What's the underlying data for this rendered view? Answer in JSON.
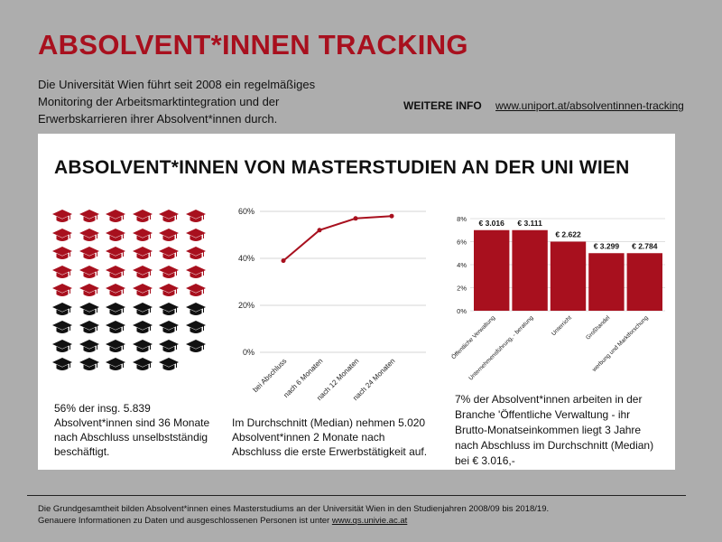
{
  "header": {
    "title": "ABSOLVENT*INNEN TRACKING",
    "intro": "Die Universität Wien führt seit 2008 ein regelmäßiges Monitoring der Arbeitsmarktintegration und der Erwerbskarrieren ihrer Absolvent*innen durch.",
    "more_label": "WEITERE INFO",
    "more_url": "www.uniport.at/absolventinnen-tracking"
  },
  "card": {
    "title": "ABSOLVENT*INNEN VON MASTERSTUDIEN AN DER UNI WIEN"
  },
  "colors": {
    "accent": "#a8101e",
    "dark": "#111111"
  },
  "icons": {
    "name": "graduation-cap-icon",
    "red_count": 30,
    "black_count": 23
  },
  "stats": {
    "s1": "56% der insg. 5.839 Absolvent*innen sind 36 Monate nach Abschluss unselbstständig beschäftigt.",
    "s2": "Im Durchschnitt (Median) nehmen 5.020 Absolvent*innen 2 Monate nach Abschluss die erste Erwerbstätigkeit auf.",
    "s3": "7% der Absolvent*innen arbeiten in der Branche 'Öffentliche Verwaltung - ihr Brutto-Monatseinkommen liegt 3 Jahre nach Abschluss im Durchschnitt (Median) bei € 3.016,-"
  },
  "footer": {
    "line1": "Die Grundgesamtheit bilden Absolvent*innen eines Masterstudiums an der Universität Wien in den Studienjahren 2008/09 bis 2018/19.",
    "line2_prefix": "Genauere Informationen zu Daten und ausgeschlossenen Personen ist unter",
    "line2_link": "www.qs.univie.ac.at"
  },
  "chart_data": [
    {
      "type": "line",
      "categories": [
        "bei Abschluss",
        "nach 6 Monaten",
        "nach 12 Monaten",
        "nach 24 Monaten"
      ],
      "values": [
        39,
        52,
        57,
        58
      ],
      "ylim": [
        0,
        60
      ],
      "yticks": [
        0,
        20,
        40,
        60
      ],
      "ytick_labels": [
        "0%",
        "20%",
        "40%",
        "60%"
      ],
      "grid": true,
      "color": "#a8101e"
    },
    {
      "type": "bar",
      "categories": [
        "Öffentliche Verwaltung",
        "Unternehmensführung, - beratung",
        "Unterricht",
        "Großhandel",
        "werbung und Marktforschung"
      ],
      "values": [
        7,
        7,
        6,
        5,
        5
      ],
      "data_labels": [
        "€ 3.016",
        "€ 3.111",
        "€ 2.622",
        "€ 3.299",
        "€ 2.784"
      ],
      "ylim": [
        0,
        8
      ],
      "yticks": [
        0,
        2,
        4,
        6,
        8
      ],
      "ytick_labels": [
        "0%",
        "2%",
        "4%",
        "6%",
        "8%"
      ],
      "grid": true,
      "color": "#a8101e"
    }
  ]
}
